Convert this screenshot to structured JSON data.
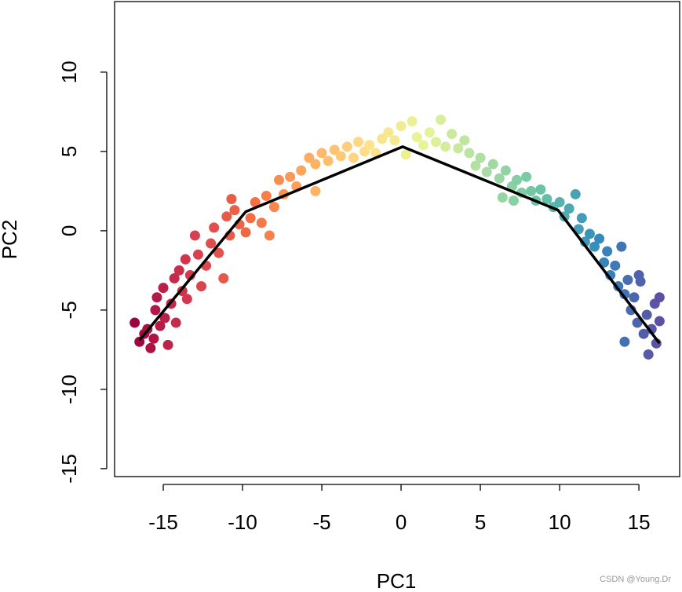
{
  "chart_data": {
    "type": "scatter",
    "xlabel": "PC1",
    "ylabel": "PC2",
    "watermark": "CSDN @Young.Dr",
    "xlim": [
      -18.07,
      17.57
    ],
    "ylim": [
      -15.5,
      14.45
    ],
    "xticks": [
      -15,
      -10,
      -5,
      0,
      5,
      10,
      15
    ],
    "yticks": [
      -15,
      -10,
      -5,
      0,
      5,
      10
    ],
    "colormap": [
      "#9e0142",
      "#d53e4f",
      "#f46d43",
      "#fdae61",
      "#fee08b",
      "#e6f598",
      "#abdda4",
      "#66c2a5",
      "#3288bd",
      "#5e4fa2"
    ],
    "x": [
      -16.8,
      -16.5,
      -16.2,
      -16,
      -15.8,
      -15.6,
      -15.5,
      -15.4,
      -15.2,
      -15,
      -14.9,
      -14.7,
      -14.5,
      -14.3,
      -14.2,
      -14,
      -13.8,
      -13.6,
      -13.5,
      -13.3,
      -13,
      -12.8,
      -12.6,
      -12.3,
      -12,
      -11.8,
      -11.5,
      -11.2,
      -11,
      -10.8,
      -10.5,
      -10.2,
      -10.7,
      -9.8,
      -9.5,
      -9.2,
      -8.8,
      -8.5,
      -8.3,
      -8,
      -7.7,
      -7.4,
      -7,
      -6.6,
      -6.3,
      -5.8,
      -5.4,
      -5.4,
      -5,
      -4.6,
      -4.2,
      -3.8,
      -3.4,
      -3,
      -2.7,
      -2.3,
      -2,
      -1.6,
      -1.2,
      -0.8,
      -0.4,
      0,
      0.3,
      0.7,
      1,
      1.4,
      1.8,
      2.2,
      2.5,
      2.8,
      3.2,
      3.6,
      4,
      4.3,
      4.7,
      5,
      5.4,
      5.8,
      6.2,
      6.6,
      7,
      7.3,
      7.6,
      7.9,
      8.2,
      8.5,
      8.8,
      6.4,
      7.1,
      9.2,
      9.6,
      10,
      10.3,
      10.6,
      11,
      11.2,
      11.4,
      11.6,
      11.9,
      12.2,
      12.5,
      12.8,
      13,
      13.2,
      13.5,
      13.7,
      13.9,
      14.1,
      14.3,
      14.5,
      14.7,
      14.9,
      15.1,
      15.3,
      15.5,
      15.6,
      15.8,
      16,
      16.1,
      16.3,
      14.1,
      15,
      16.3
    ],
    "y": [
      -5.8,
      -7,
      -6.5,
      -6.2,
      -7.4,
      -6.8,
      -5,
      -4.2,
      -6,
      -3.6,
      -5.5,
      -7.2,
      -4.6,
      -3,
      -5.8,
      -2.5,
      -3.8,
      -1.8,
      -4.3,
      -2.8,
      -0.3,
      -1.5,
      -3.5,
      -2.2,
      -0.8,
      0.2,
      -1.4,
      -3,
      0.9,
      -0.3,
      1.3,
      0.4,
      2,
      -0.1,
      0.8,
      1.8,
      0.5,
      2.2,
      -0.3,
      1.5,
      3.2,
      2.3,
      3.4,
      2.8,
      3.8,
      4.6,
      4.2,
      2.5,
      4.9,
      4.4,
      5.1,
      4.7,
      5.3,
      4.6,
      5.6,
      5,
      5.4,
      4.9,
      5.8,
      6.2,
      5.7,
      6.6,
      4.8,
      6.9,
      5.9,
      5.4,
      6.2,
      5.6,
      7,
      5.3,
      6.1,
      5.2,
      5.7,
      4.9,
      4.1,
      4.6,
      3.7,
      4.2,
      3.3,
      3.8,
      2.8,
      3.2,
      2.4,
      3.4,
      2.5,
      1.9,
      2.6,
      2.1,
      1.9,
      2,
      1.5,
      1.8,
      0.9,
      1.4,
      2.3,
      0.1,
      0.8,
      -0.7,
      -0.2,
      -1,
      -0.5,
      -2,
      -1.3,
      -2.8,
      -2.2,
      -3.5,
      -1,
      -4,
      -3.1,
      -5,
      -4.2,
      -5.8,
      -3.2,
      -6.5,
      -5.3,
      -7.8,
      -6.2,
      -4.6,
      -7.1,
      -5.7,
      -7,
      -2.8,
      -4.2
    ],
    "line": {
      "color": "#000000",
      "x": [
        -16.5,
        -9.8,
        0.1,
        9.9,
        16.3
      ],
      "y": [
        -6.9,
        1.2,
        5.3,
        1.3,
        -7.1
      ]
    }
  }
}
